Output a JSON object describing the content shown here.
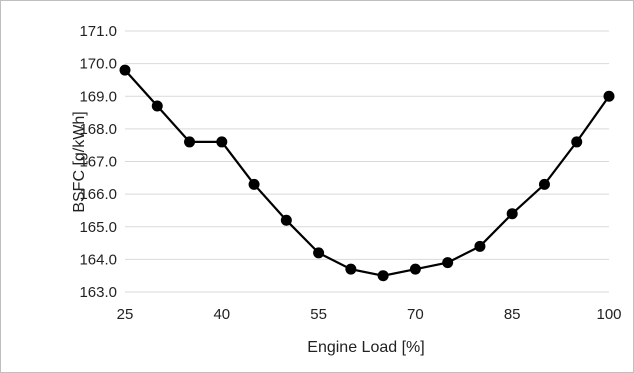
{
  "chart_data": {
    "type": "line",
    "title": "",
    "xlabel": "Engine Load [%]",
    "ylabel": "BSFC [g/kWh]",
    "x": [
      25,
      30,
      35,
      40,
      45,
      50,
      55,
      60,
      65,
      70,
      75,
      80,
      85,
      90,
      95,
      100
    ],
    "series": [
      {
        "values": [
          169.8,
          168.7,
          167.6,
          167.6,
          166.3,
          165.2,
          164.2,
          163.7,
          163.5,
          163.7,
          163.9,
          164.4,
          165.4,
          166.3,
          167.6,
          169.0
        ]
      }
    ],
    "xlim": [
      25,
      100
    ],
    "ylim": [
      163.0,
      171.0
    ],
    "xticks": [
      "25",
      "40",
      "55",
      "70",
      "85",
      "100"
    ],
    "yticks": [
      "163.0",
      "164.0",
      "165.0",
      "166.0",
      "167.0",
      "168.0",
      "169.0",
      "170.0",
      "171.0"
    ],
    "grid": "horizontal",
    "legend": "none",
    "colors": {
      "line": "#000000",
      "marker": "#000000",
      "grid": "#d9d9d9"
    }
  }
}
